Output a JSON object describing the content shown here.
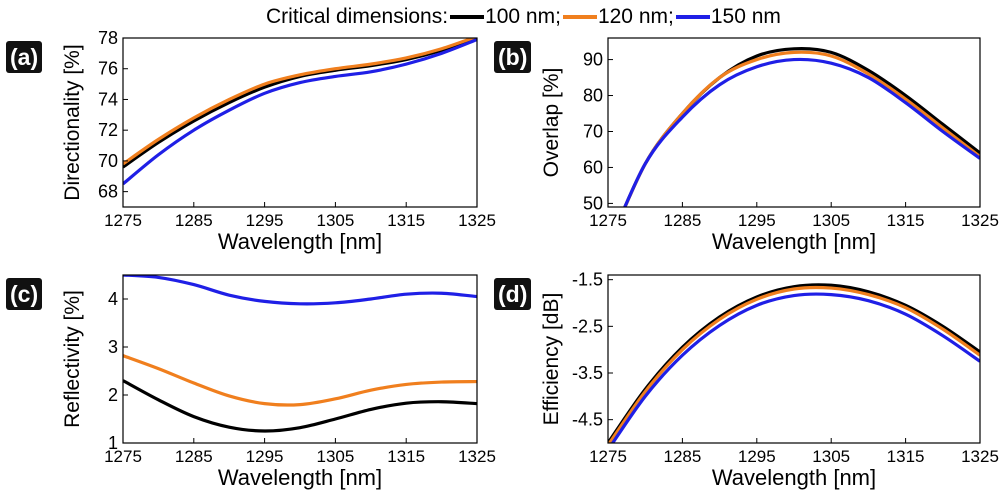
{
  "legend": {
    "title": "Critical dimensions:",
    "entries": [
      {
        "label": "100 nm;",
        "color": "#000000"
      },
      {
        "label": "120 nm;",
        "color": "#f07f1e"
      },
      {
        "label": "150 nm",
        "color": "#1f1fe6"
      }
    ]
  },
  "chart_data": [
    {
      "type": "line",
      "tag": "(a)",
      "ylabel": "Directionality [%]",
      "xlabel": "Wavelength [nm]",
      "xlim": [
        1275,
        1325
      ],
      "ylim": [
        67,
        78
      ],
      "xticks": [
        1275,
        1285,
        1295,
        1305,
        1315,
        1325
      ],
      "yticks": [
        68,
        70,
        72,
        74,
        76,
        78
      ],
      "grid": false,
      "x": [
        1275,
        1280,
        1285,
        1290,
        1295,
        1300,
        1305,
        1310,
        1315,
        1320,
        1325
      ],
      "series": [
        {
          "name": "100 nm",
          "color": "#000000",
          "values": [
            69.6,
            71.2,
            72.6,
            73.8,
            74.8,
            75.5,
            75.9,
            76.2,
            76.6,
            77.2,
            78.0
          ]
        },
        {
          "name": "120 nm",
          "color": "#f07f1e",
          "values": [
            69.8,
            71.4,
            72.8,
            74.0,
            75.0,
            75.6,
            76.0,
            76.3,
            76.7,
            77.3,
            78.1
          ]
        },
        {
          "name": "150 nm",
          "color": "#1f1fe6",
          "values": [
            68.5,
            70.4,
            72.0,
            73.3,
            74.4,
            75.1,
            75.5,
            75.8,
            76.3,
            77.0,
            77.9
          ]
        }
      ]
    },
    {
      "type": "line",
      "tag": "(b)",
      "ylabel": "Overlap [%]",
      "xlabel": "Wavelength [nm]",
      "xlim": [
        1275,
        1325
      ],
      "ylim": [
        49,
        96
      ],
      "xticks": [
        1275,
        1285,
        1295,
        1305,
        1315,
        1325
      ],
      "yticks": [
        50,
        60,
        70,
        80,
        90
      ],
      "grid": false,
      "x": [
        1275,
        1280,
        1285,
        1290,
        1295,
        1300,
        1305,
        1310,
        1315,
        1320,
        1325
      ],
      "series": [
        {
          "name": "100 nm",
          "color": "#000000",
          "values": [
            38,
            61,
            75,
            85,
            91,
            93,
            92,
            87,
            80,
            72,
            64
          ]
        },
        {
          "name": "120 nm",
          "color": "#f07f1e",
          "values": [
            38,
            61,
            75,
            85,
            90,
            92,
            91,
            86,
            79,
            71,
            63
          ]
        },
        {
          "name": "150 nm",
          "color": "#1f1fe6",
          "values": [
            38,
            61,
            74,
            83,
            88,
            90,
            89,
            85,
            78,
            70,
            62.5
          ]
        }
      ]
    },
    {
      "type": "line",
      "tag": "(c)",
      "ylabel": "Reflectivity [%]",
      "xlabel": "Wavelength [nm]",
      "xlim": [
        1275,
        1325
      ],
      "ylim": [
        1,
        4.5
      ],
      "xticks": [
        1275,
        1285,
        1295,
        1305,
        1315,
        1325
      ],
      "yticks": [
        1,
        2,
        3,
        4
      ],
      "grid": false,
      "x": [
        1275,
        1280,
        1285,
        1290,
        1295,
        1300,
        1305,
        1310,
        1315,
        1320,
        1325
      ],
      "series": [
        {
          "name": "100 nm",
          "color": "#000000",
          "values": [
            2.3,
            1.9,
            1.55,
            1.33,
            1.25,
            1.32,
            1.5,
            1.7,
            1.83,
            1.86,
            1.82
          ]
        },
        {
          "name": "120 nm",
          "color": "#f07f1e",
          "values": [
            2.82,
            2.55,
            2.25,
            1.98,
            1.82,
            1.8,
            1.92,
            2.1,
            2.22,
            2.27,
            2.28
          ]
        },
        {
          "name": "150 nm",
          "color": "#1f1fe6",
          "values": [
            4.5,
            4.45,
            4.3,
            4.08,
            3.95,
            3.9,
            3.92,
            4.0,
            4.1,
            4.12,
            4.05
          ]
        }
      ]
    },
    {
      "type": "line",
      "tag": "(d)",
      "ylabel": "Efficiency [dB]",
      "xlabel": "Wavelength [nm]",
      "xlim": [
        1275,
        1325
      ],
      "ylim": [
        -5.0,
        -1.4
      ],
      "xticks": [
        1275,
        1285,
        1295,
        1305,
        1315,
        1325
      ],
      "yticks": [
        -1.5,
        -2.5,
        -3.5,
        -4.5
      ],
      "ytick_labels": [
        "-1.5",
        "-2.5",
        "-3.5",
        "-4.5"
      ],
      "grid": false,
      "x": [
        1275,
        1280,
        1285,
        1290,
        1295,
        1300,
        1305,
        1310,
        1315,
        1320,
        1325
      ],
      "series": [
        {
          "name": "100 nm",
          "color": "#000000",
          "values": [
            -5.0,
            -3.85,
            -2.95,
            -2.3,
            -1.87,
            -1.65,
            -1.62,
            -1.76,
            -2.05,
            -2.5,
            -3.05
          ]
        },
        {
          "name": "120 nm",
          "color": "#f07f1e",
          "values": [
            -5.05,
            -3.9,
            -3.0,
            -2.35,
            -1.92,
            -1.7,
            -1.68,
            -1.82,
            -2.1,
            -2.56,
            -3.12
          ]
        },
        {
          "name": "150 nm",
          "color": "#1f1fe6",
          "values": [
            -5.15,
            -4.0,
            -3.12,
            -2.48,
            -2.05,
            -1.84,
            -1.82,
            -1.95,
            -2.24,
            -2.7,
            -3.25
          ]
        }
      ]
    }
  ]
}
